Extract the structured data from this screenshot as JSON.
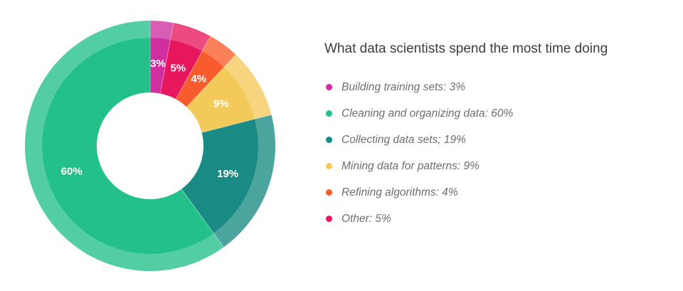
{
  "chart_data": {
    "type": "pie",
    "title": "What data scientists spend the most time doing",
    "slices": [
      {
        "name": "Building training sets",
        "value": 3,
        "label": "3%",
        "legend": "Building training sets: 3%",
        "color": "#cf2fa0"
      },
      {
        "name": "Other",
        "value": 5,
        "label": "5%",
        "legend": "Other: 5%",
        "color": "#e8175d"
      },
      {
        "name": "Refining algorithms",
        "value": 4,
        "label": "4%",
        "legend": "Refining algorithms: 4%",
        "color": "#f85c2c"
      },
      {
        "name": "Mining data for patterns",
        "value": 9,
        "label": "9%",
        "legend": "Mining data for patterns: 9%",
        "color": "#f3c95a"
      },
      {
        "name": "Collecting data sets",
        "value": 19,
        "label": "19%",
        "legend": "Collecting data sets; 19%",
        "color": "#1a8b84"
      },
      {
        "name": "Cleaning and organizing data",
        "value": 60,
        "label": "60%",
        "legend": "Cleaning and organizing data: 60%",
        "color": "#23c08a"
      }
    ],
    "legend_order": [
      "Building training sets",
      "Cleaning and organizing data",
      "Collecting data sets",
      "Mining data for patterns",
      "Refining algorithms",
      "Other"
    ],
    "legend_position": "right",
    "style": "donut with lighter outer ring"
  }
}
